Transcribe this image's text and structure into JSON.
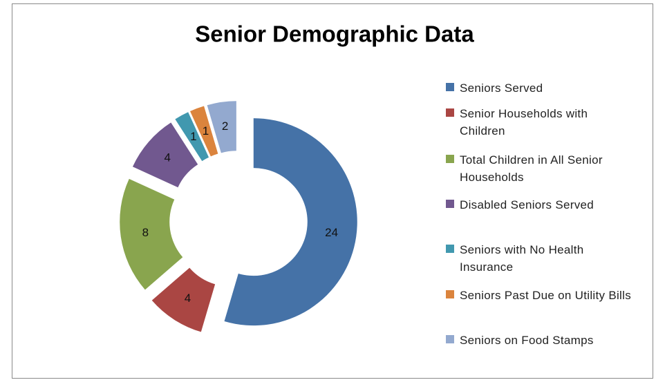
{
  "chart_data": {
    "type": "donut",
    "title": "Senior Demographic Data",
    "categories": [
      "Seniors Served",
      "Senior Households with Children",
      "Total Children in All Senior Households",
      "Disabled Seniors Served",
      "Seniors with No Health Insurance",
      "Seniors Past Due on Utility Bills",
      "Seniors on Food Stamps"
    ],
    "values": [
      24,
      4,
      8,
      4,
      1,
      1,
      2
    ],
    "colors": [
      "#4572a7",
      "#aa4643",
      "#89a54e",
      "#71588f",
      "#4198af",
      "#db843d",
      "#93a9cf"
    ],
    "legend": "right"
  }
}
